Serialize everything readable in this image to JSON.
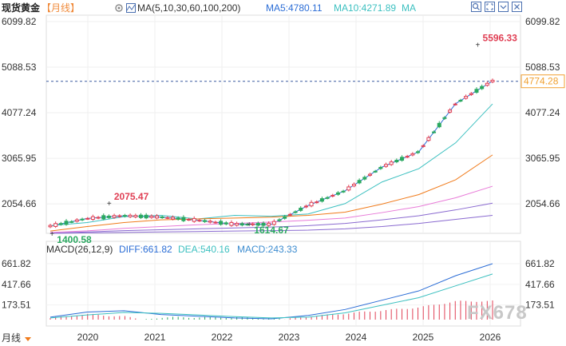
{
  "header": {
    "symbol": "现货黄金",
    "period": "【月线】",
    "ma_params": "MA(5,10,30,60,100,200)",
    "ma5": "MA5:4780.11",
    "ma10": "MA10:4271.89",
    "ma_more": "MA"
  },
  "macd_header": {
    "params": "MACD(26,12,9)",
    "diff": "DIFF:661.82",
    "dea": "DEA:540.16",
    "macd": "MACD:243.33"
  },
  "footer": {
    "period_label": "月线"
  },
  "watermark": "FX678",
  "icons": [
    "search-icon",
    "expand-icon",
    "chevron-down-icon",
    "close-icon"
  ],
  "colors": {
    "up": "#e04055",
    "down": "#2aa860",
    "ma5": "#2b6dd6",
    "ma10": "#3cc0c0",
    "ma30": "#f07a1a",
    "ma60": "#e87ad8",
    "ma100": "#8a6ad0",
    "current_price": "#f0a030"
  },
  "chart_data": [
    {
      "type": "candlestick",
      "name": "price",
      "y_ticks_left": [
        "6099.82",
        "5088.53",
        "4077.24",
        "3065.95",
        "2054.66"
      ],
      "y_ticks_right": [
        "6099.82",
        "5088.53",
        "4077.24",
        "3065.95",
        "2054.66"
      ],
      "ylim": [
        1400,
        6099.82
      ],
      "x_ticks": [
        "2020",
        "2021",
        "2022",
        "2023",
        "2024",
        "2025",
        "2026"
      ],
      "current_price": "4774.28",
      "annotations": [
        {
          "label": "5596.33",
          "date": "2025-12",
          "value": 5596.33,
          "kind": "high"
        },
        {
          "label": "2075.47",
          "date": "2020-08",
          "value": 2075.47,
          "kind": "high"
        },
        {
          "label": "1614.67",
          "date": "2022-10",
          "value": 1614.67,
          "kind": "low"
        },
        {
          "label": "1400.58",
          "date": "2019-05",
          "value": 1400.58,
          "kind": "low"
        }
      ],
      "ma_lines": [
        {
          "name": "MA5",
          "values": [
            1560,
            1730,
            1790,
            1760,
            1690,
            1600,
            1600,
            2020,
            2345,
            2870,
            3210,
            4280,
            4780.11
          ]
        },
        {
          "name": "MA10",
          "values": [
            1570,
            1640,
            1770,
            1800,
            1720,
            1800,
            1780,
            1830,
            2060,
            2540,
            2835,
            3410,
            4271.89
          ]
        },
        {
          "name": "MA30",
          "values": [
            1450,
            1550,
            1640,
            1700,
            1720,
            1740,
            1760,
            1800,
            1870,
            2050,
            2260,
            2590,
            3140
          ]
        },
        {
          "name": "MA60",
          "values": [
            1420,
            1455,
            1510,
            1550,
            1590,
            1620,
            1650,
            1690,
            1740,
            1860,
            1995,
            2190,
            2445
          ]
        },
        {
          "name": "MA100",
          "values": [
            1400,
            1430,
            1460,
            1480,
            1500,
            1520,
            1540,
            1570,
            1620,
            1700,
            1790,
            1920,
            2070
          ]
        },
        {
          "name": "MA200",
          "values": [
            1400,
            1410,
            1420,
            1430,
            1440,
            1450,
            1460,
            1470,
            1500,
            1550,
            1620,
            1710,
            1800
          ]
        }
      ]
    },
    {
      "type": "bar",
      "name": "MACD",
      "y_ticks_left": [
        "661.82",
        "417.66",
        "173.51"
      ],
      "y_ticks_right": [
        "661.82",
        "417.66",
        "173.51"
      ],
      "ylim": [
        0,
        661.82
      ],
      "diff_line": [
        30,
        90,
        105,
        60,
        40,
        20,
        10,
        50,
        120,
        230,
        340,
        520,
        661.82
      ],
      "dea_line": [
        20,
        55,
        85,
        75,
        55,
        35,
        20,
        30,
        80,
        170,
        260,
        400,
        540.16
      ],
      "x_ticks": [
        "2020",
        "2021",
        "2022",
        "2023",
        "2024",
        "2025",
        "2026"
      ]
    }
  ]
}
